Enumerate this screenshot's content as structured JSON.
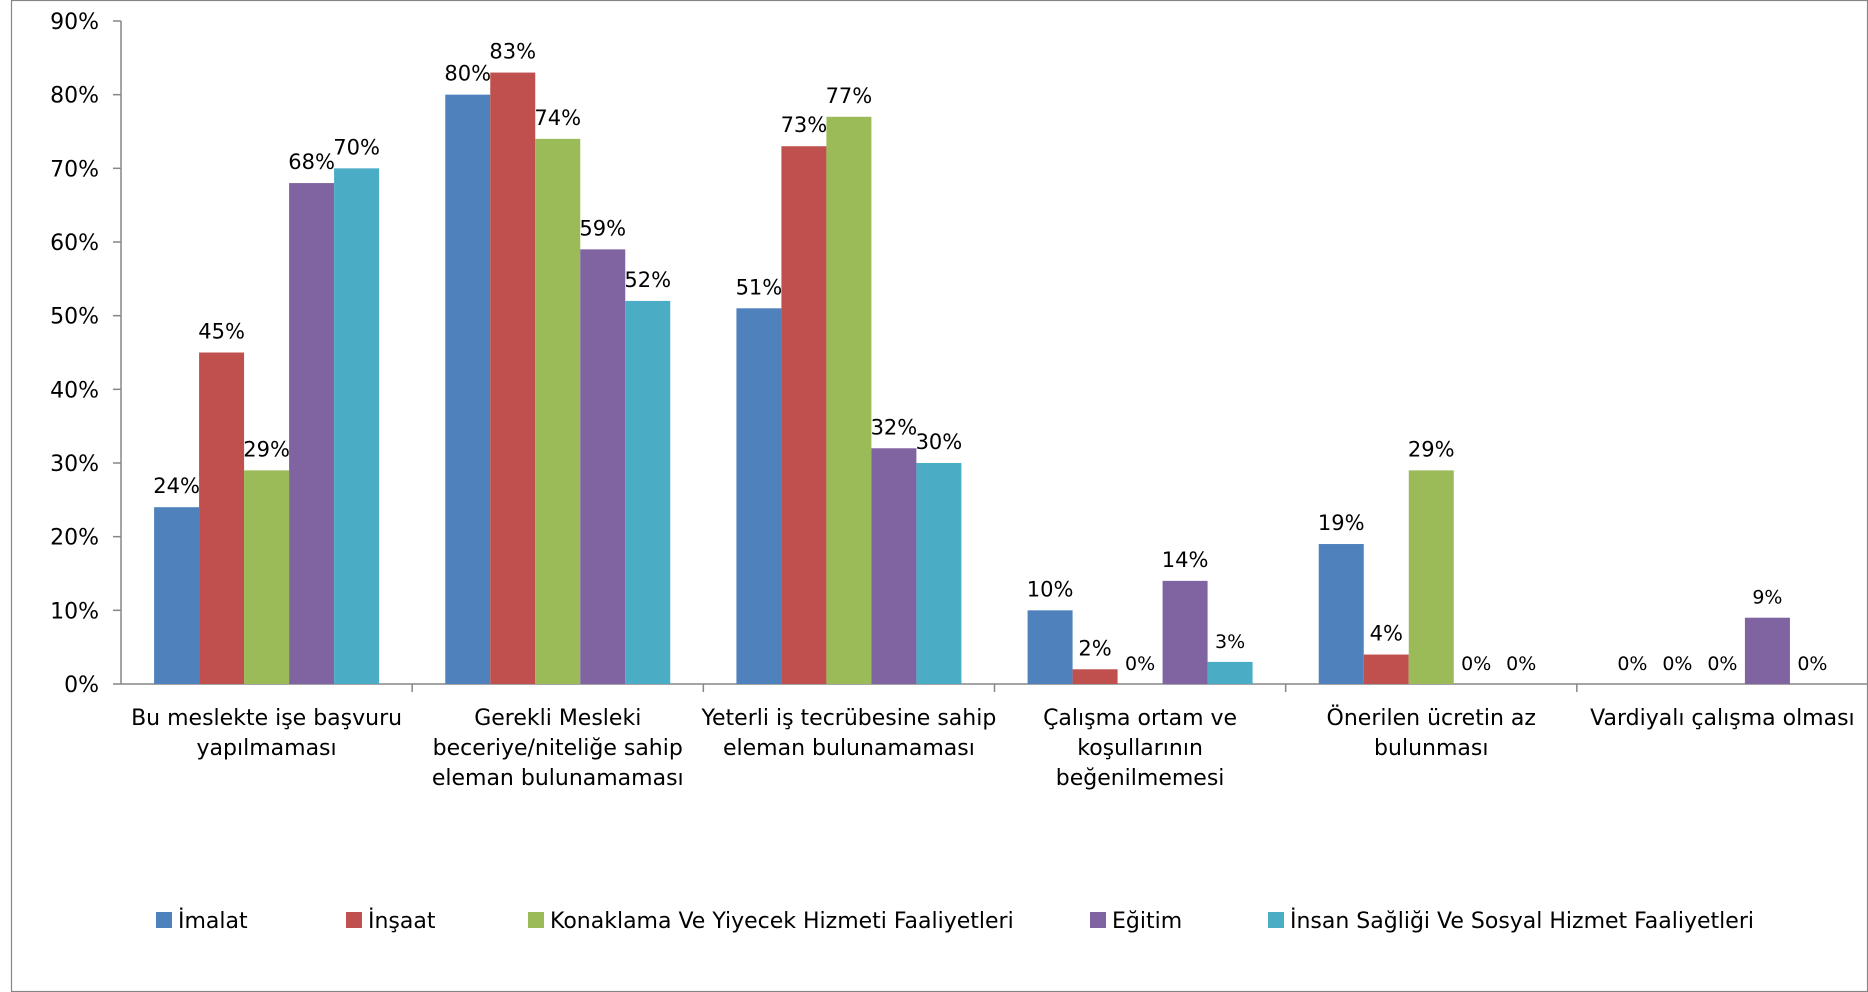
{
  "chart_data": {
    "type": "bar",
    "title": "",
    "xlabel": "",
    "ylabel": "",
    "ylim": [
      0,
      90
    ],
    "y_unit": "%",
    "y_ticks": [
      "0%",
      "10%",
      "20%",
      "30%",
      "40%",
      "50%",
      "60%",
      "70%",
      "80%",
      "90%"
    ],
    "grid": false,
    "legend_position": "bottom",
    "categories": [
      [
        "Bu meslekte işe başvuru",
        "yapılmaması"
      ],
      [
        "Gerekli Mesleki",
        "beceriye/niteliğe sahip",
        "eleman bulunamaması"
      ],
      [
        "Yeterli iş tecrübesine sahip",
        "eleman bulunamaması"
      ],
      [
        "Çalışma ortam ve",
        "koşullarının",
        "beğenilmemesi"
      ],
      [
        "Önerilen ücretin az",
        "bulunması"
      ],
      [
        "Vardiyalı çalışma olması"
      ]
    ],
    "series": [
      {
        "name": "İmalat",
        "color": "#4F81BD",
        "values": [
          24,
          80,
          51,
          10,
          19,
          0
        ],
        "labels": [
          "24%",
          "80%",
          "51%",
          "10%",
          "19%",
          "0%"
        ]
      },
      {
        "name": "İnşaat",
        "color": "#C0504D",
        "values": [
          45,
          83,
          73,
          2,
          4,
          0
        ],
        "labels": [
          "45%",
          "83%",
          "73%",
          "2%",
          "4%",
          "0%"
        ]
      },
      {
        "name": "Konaklama Ve Yiyecek Hizmeti Faaliyetleri",
        "color": "#9BBB59",
        "values": [
          29,
          74,
          77,
          0,
          29,
          0
        ],
        "labels": [
          "29%",
          "74%",
          "77%",
          "0%",
          "29%",
          "0%"
        ]
      },
      {
        "name": "Eğitim",
        "color": "#8064A2",
        "values": [
          68,
          59,
          32,
          14,
          0,
          9
        ],
        "labels": [
          "68%",
          "59%",
          "32%",
          "14%",
          "0%",
          "9%"
        ]
      },
      {
        "name": "İnsan Sağliği Ve Sosyal Hizmet Faaliyetleri",
        "color": "#4BACC6",
        "values": [
          70,
          52,
          30,
          3,
          0,
          0
        ],
        "labels": [
          "70%",
          "52%",
          "30%",
          "3%",
          "0%",
          "0%"
        ]
      }
    ]
  }
}
